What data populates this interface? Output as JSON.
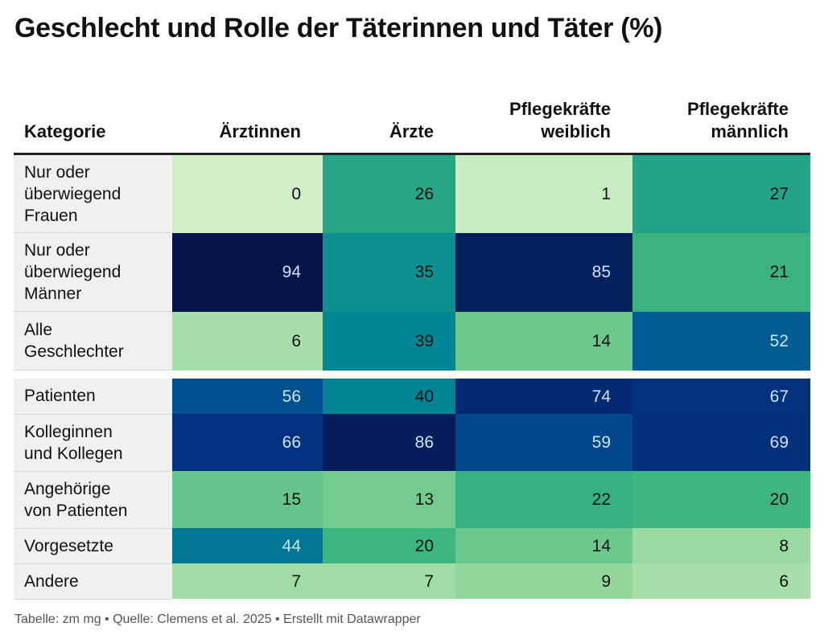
{
  "title": "Geschlecht und Rolle der Täterinnen und Täter (%)",
  "footer": "Tabelle: zm mg • Quelle: Clemens et al. 2025 • Erstellt mit Datawrapper",
  "colors": {
    "scale_light": "#d0eec8",
    "scale_mid": "#1a9b8a",
    "scale_dark": "#03154a",
    "label_bg": "#f0f0f0"
  },
  "chart_data": {
    "type": "heatmap",
    "title": "Geschlecht und Rolle der Täterinnen und Täter (%)",
    "header": {
      "category": "Kategorie",
      "columns": [
        [
          "Ärztinnen"
        ],
        [
          "Ärzte"
        ],
        [
          "Pflegekräfte",
          "weiblich"
        ],
        [
          "Pflegekräfte",
          "männlich"
        ]
      ]
    },
    "rows": [
      {
        "label": [
          "Nur oder",
          "überwiegend",
          "Frauen"
        ],
        "values": [
          0,
          26,
          1,
          27
        ]
      },
      {
        "label": [
          "Nur oder",
          "überwiegend",
          "Männer"
        ],
        "values": [
          94,
          35,
          85,
          21
        ]
      },
      {
        "label": [
          "Alle",
          "Geschlechter"
        ],
        "values": [
          6,
          39,
          14,
          52
        ]
      },
      {
        "label": [
          "Patienten"
        ],
        "values": [
          56,
          40,
          74,
          67
        ]
      },
      {
        "label": [
          "Kolleginnen",
          "und Kollegen"
        ],
        "values": [
          66,
          86,
          59,
          69
        ]
      },
      {
        "label": [
          "Angehörige",
          "von Patienten"
        ],
        "values": [
          15,
          13,
          22,
          20
        ]
      },
      {
        "label": [
          "Vorgesetzte"
        ],
        "values": [
          44,
          20,
          14,
          8
        ]
      },
      {
        "label": [
          "Andere"
        ],
        "values": [
          7,
          7,
          9,
          6
        ]
      }
    ],
    "groups_break_after_row": 2
  }
}
